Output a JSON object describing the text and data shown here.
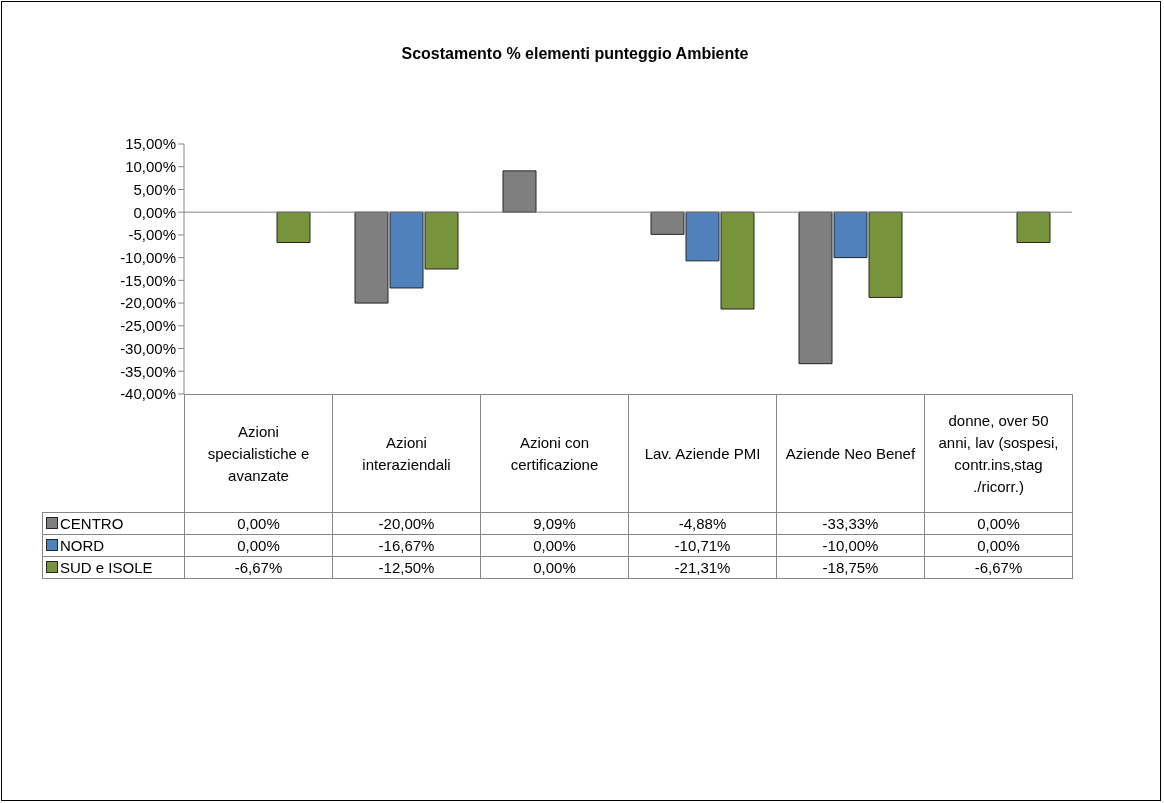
{
  "chart_data": {
    "type": "bar",
    "title": "Scostamento % elementi punteggio Ambiente",
    "categories": [
      "Azioni specialistiche e avanzate",
      "Azioni interaziendali",
      "Azioni con certificazione",
      "Lav. Aziende PMI",
      "Aziende Neo Benef",
      "donne, over 50 anni, lav (sospesi, contr.ins,stag ./ricorr.)"
    ],
    "series": [
      {
        "name": "CENTRO",
        "color": "#7f7f7f",
        "values": [
          0,
          -20,
          9.09,
          -4.88,
          -33.33,
          0
        ],
        "value_labels": [
          "0,00%",
          "-20,00%",
          "9,09%",
          "-4,88%",
          "-33,33%",
          "0,00%"
        ]
      },
      {
        "name": "NORD",
        "color": "#4f81bd",
        "values": [
          0,
          -16.67,
          0,
          -10.71,
          -10,
          0
        ],
        "value_labels": [
          "0,00%",
          "-16,67%",
          "0,00%",
          "-10,71%",
          "-10,00%",
          "0,00%"
        ]
      },
      {
        "name": "SUD e ISOLE",
        "color": "#77933c",
        "values": [
          -6.67,
          -12.5,
          0,
          -21.31,
          -18.75,
          -6.67
        ],
        "value_labels": [
          "-6,67%",
          "-12,50%",
          "0,00%",
          "-21,31%",
          "-18,75%",
          "-6,67%"
        ]
      }
    ],
    "ylim": [
      -40,
      15
    ],
    "yticks": [
      {
        "value": -40,
        "label": "-40,00%"
      },
      {
        "value": -35,
        "label": "-35,00%"
      },
      {
        "value": -30,
        "label": "-30,00%"
      },
      {
        "value": -25,
        "label": "-25,00%"
      },
      {
        "value": -20,
        "label": "-20,00%"
      },
      {
        "value": -15,
        "label": "-15,00%"
      },
      {
        "value": -10,
        "label": "-10,00%"
      },
      {
        "value": -5,
        "label": "-5,00%"
      },
      {
        "value": 0,
        "label": "0,00%"
      },
      {
        "value": 5,
        "label": "5,00%"
      },
      {
        "value": 10,
        "label": "10,00%"
      },
      {
        "value": 15,
        "label": "15,00%"
      }
    ],
    "legend": "bottom left"
  }
}
